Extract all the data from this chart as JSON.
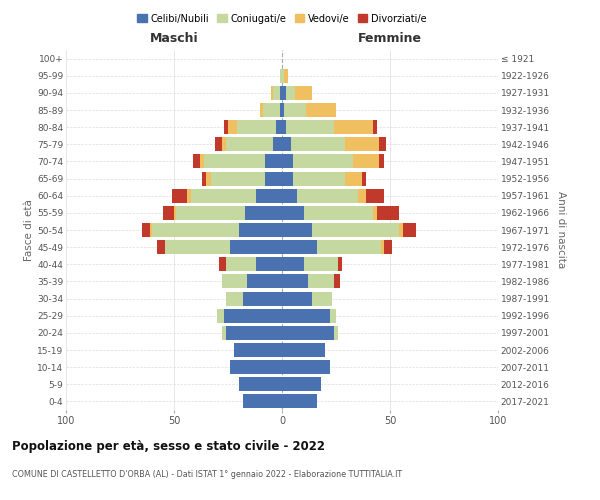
{
  "age_groups": [
    "0-4",
    "5-9",
    "10-14",
    "15-19",
    "20-24",
    "25-29",
    "30-34",
    "35-39",
    "40-44",
    "45-49",
    "50-54",
    "55-59",
    "60-64",
    "65-69",
    "70-74",
    "75-79",
    "80-84",
    "85-89",
    "90-94",
    "95-99",
    "100+"
  ],
  "birth_years": [
    "2017-2021",
    "2012-2016",
    "2007-2011",
    "2002-2006",
    "1997-2001",
    "1992-1996",
    "1987-1991",
    "1982-1986",
    "1977-1981",
    "1972-1976",
    "1967-1971",
    "1962-1966",
    "1957-1961",
    "1952-1956",
    "1947-1951",
    "1942-1946",
    "1937-1941",
    "1932-1936",
    "1927-1931",
    "1922-1926",
    "≤ 1921"
  ],
  "maschi": {
    "celibi": [
      18,
      20,
      24,
      22,
      26,
      27,
      18,
      16,
      12,
      24,
      20,
      17,
      12,
      8,
      8,
      4,
      3,
      1,
      1,
      0,
      0
    ],
    "coniugati": [
      0,
      0,
      0,
      0,
      2,
      3,
      8,
      12,
      14,
      30,
      40,
      32,
      30,
      25,
      28,
      22,
      18,
      8,
      3,
      1,
      0
    ],
    "vedovi": [
      0,
      0,
      0,
      0,
      0,
      0,
      0,
      0,
      0,
      0,
      1,
      1,
      2,
      2,
      2,
      2,
      4,
      1,
      1,
      0,
      0
    ],
    "divorziati": [
      0,
      0,
      0,
      0,
      0,
      0,
      0,
      0,
      3,
      4,
      4,
      5,
      7,
      2,
      3,
      3,
      2,
      0,
      0,
      0,
      0
    ]
  },
  "femmine": {
    "nubili": [
      16,
      18,
      22,
      20,
      24,
      22,
      14,
      12,
      10,
      16,
      14,
      10,
      7,
      5,
      5,
      4,
      2,
      1,
      2,
      0,
      0
    ],
    "coniugate": [
      0,
      0,
      0,
      0,
      2,
      3,
      9,
      12,
      16,
      30,
      40,
      32,
      28,
      24,
      28,
      25,
      22,
      10,
      4,
      1,
      0
    ],
    "vedove": [
      0,
      0,
      0,
      0,
      0,
      0,
      0,
      0,
      0,
      1,
      2,
      2,
      4,
      8,
      12,
      16,
      18,
      14,
      8,
      2,
      0
    ],
    "divorziate": [
      0,
      0,
      0,
      0,
      0,
      0,
      0,
      3,
      2,
      4,
      6,
      10,
      8,
      2,
      2,
      3,
      2,
      0,
      0,
      0,
      0
    ]
  },
  "colors": {
    "celibi": "#4a72b0",
    "coniugati": "#c5d8a0",
    "vedovi": "#f0c060",
    "divorziati": "#c0392b"
  },
  "title": "Popolazione per età, sesso e stato civile - 2022",
  "subtitle": "COMUNE DI CASTELLETTO D'ORBA (AL) - Dati ISTAT 1° gennaio 2022 - Elaborazione TUTTITALIA.IT",
  "xlabel_left": "Maschi",
  "xlabel_right": "Femmine",
  "ylabel_left": "Fasce di età",
  "ylabel_right": "Anni di nascita",
  "xlim": 100,
  "legend_labels": [
    "Celibi/Nubili",
    "Coniugati/e",
    "Vedovi/e",
    "Divorziati/e"
  ],
  "bg_color": "#ffffff",
  "grid_color": "#cccccc"
}
